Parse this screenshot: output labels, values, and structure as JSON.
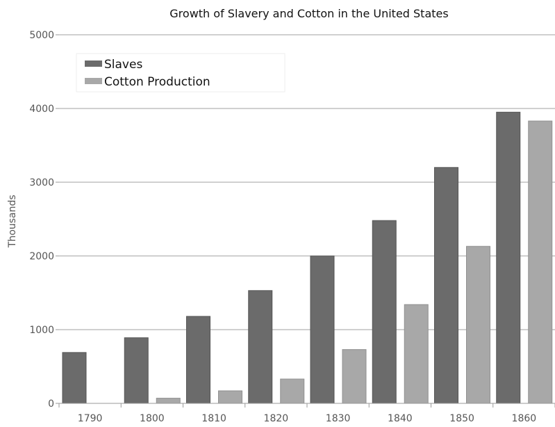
{
  "chart_data": {
    "type": "bar",
    "title": "Growth of Slavery and Cotton in the United States",
    "ylabel": "Thousands",
    "xlabel": "",
    "ylim": [
      0,
      5000
    ],
    "yticks": [
      "0",
      "1000",
      "2000",
      "3000",
      "4000",
      "5000"
    ],
    "categories": [
      "1790",
      "1800",
      "1810",
      "1820",
      "1830",
      "1840",
      "1850",
      "1860"
    ],
    "grid": true,
    "legend_position": "top-left",
    "series": [
      {
        "name": "Slaves",
        "color": "#6b6b6b",
        "values": [
          690,
          890,
          1180,
          1530,
          2000,
          2480,
          3200,
          3950
        ]
      },
      {
        "name": "Cotton Production",
        "color": "#a8a8a8",
        "values": [
          0,
          70,
          170,
          330,
          730,
          1340,
          2130,
          3830
        ]
      }
    ]
  }
}
